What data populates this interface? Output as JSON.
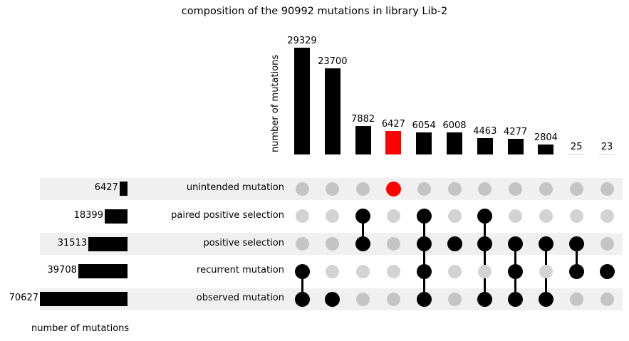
{
  "chart_data": {
    "type": "bar",
    "subtype": "upset",
    "title": "composition of the 90992 mutations in library Lib-2",
    "intersection_ylabel": "number of mutations",
    "set_size_xlabel": "number of mutations",
    "sets": [
      {
        "name": "unintended mutation",
        "size": 6427
      },
      {
        "name": "paired positive selection",
        "size": 18399
      },
      {
        "name": "positive selection",
        "size": 31513
      },
      {
        "name": "recurrent mutation",
        "size": 39708
      },
      {
        "name": "observed mutation",
        "size": 70627
      }
    ],
    "intersections": [
      {
        "value": 29329,
        "members": [
          "recurrent mutation",
          "observed mutation"
        ],
        "color": "#000000"
      },
      {
        "value": 23700,
        "members": [
          "observed mutation"
        ],
        "color": "#000000"
      },
      {
        "value": 7882,
        "members": [
          "paired positive selection",
          "positive selection"
        ],
        "color": "#000000"
      },
      {
        "value": 6427,
        "members": [
          "unintended mutation"
        ],
        "color": "#ff0000"
      },
      {
        "value": 6054,
        "members": [
          "paired positive selection",
          "positive selection",
          "recurrent mutation",
          "observed mutation"
        ],
        "color": "#000000"
      },
      {
        "value": 6008,
        "members": [
          "positive selection"
        ],
        "color": "#000000"
      },
      {
        "value": 4463,
        "members": [
          "paired positive selection",
          "positive selection",
          "observed mutation"
        ],
        "color": "#000000"
      },
      {
        "value": 4277,
        "members": [
          "positive selection",
          "recurrent mutation",
          "observed mutation"
        ],
        "color": "#000000"
      },
      {
        "value": 2804,
        "members": [
          "positive selection",
          "observed mutation"
        ],
        "color": "#000000"
      },
      {
        "value": 25,
        "members": [
          "positive selection",
          "recurrent mutation"
        ],
        "color": "#000000"
      },
      {
        "value": 23,
        "members": [
          "recurrent mutation"
        ],
        "color": "#000000"
      }
    ],
    "colors": {
      "active": "#000000",
      "highlight": "#ff0000",
      "inactive_shaded_row": "#c4c4c4",
      "inactive_plain_row": "#d3d3d3",
      "stripe": "#f0f0f0"
    },
    "grid": false,
    "legend": "none"
  }
}
